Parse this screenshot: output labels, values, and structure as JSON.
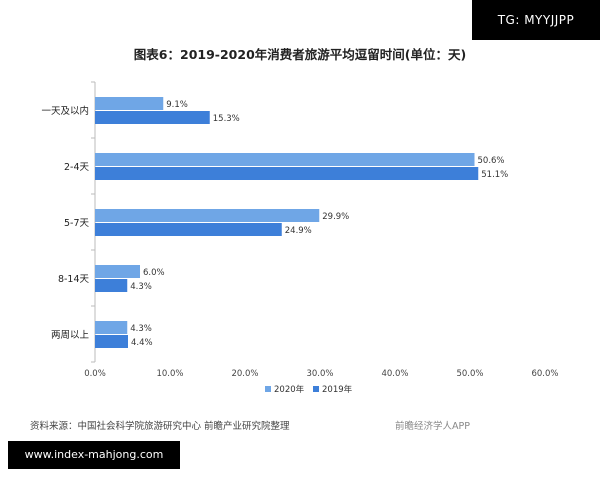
{
  "watermark": {
    "tg": "TG: MYYJJPP"
  },
  "footer": {
    "source": "资料来源：中国社会科学院旅游研究中心 前瞻产业研究院整理",
    "source_right": "前瞻经济学人APP",
    "url": "www.index-mahjong.com"
  },
  "chart_data": {
    "type": "bar",
    "orientation": "horizontal",
    "title": "图表6：2019-2020年消费者旅游平均逗留时间(单位：天)",
    "categories": [
      "一天及以内",
      "2-4天",
      "5-7天",
      "8-14天",
      "两周以上"
    ],
    "series": [
      {
        "name": "2020年",
        "color": "#6fa6e6",
        "values": [
          9.1,
          50.6,
          29.9,
          6.0,
          4.3
        ]
      },
      {
        "name": "2019年",
        "color": "#3d7fd9",
        "values": [
          15.3,
          51.1,
          24.9,
          4.3,
          4.4
        ]
      }
    ],
    "value_labels": [
      [
        "9.1%",
        "50.6%",
        "29.9%",
        "6.0%",
        "4.3%"
      ],
      [
        "15.3%",
        "51.1%",
        "24.9%",
        "4.3%",
        "4.4%"
      ]
    ],
    "xlim": [
      0,
      60
    ],
    "xticks": [
      "0.0%",
      "10.0%",
      "20.0%",
      "30.0%",
      "40.0%",
      "50.0%",
      "60.0%"
    ],
    "legend_position": "bottom",
    "grid": false
  }
}
